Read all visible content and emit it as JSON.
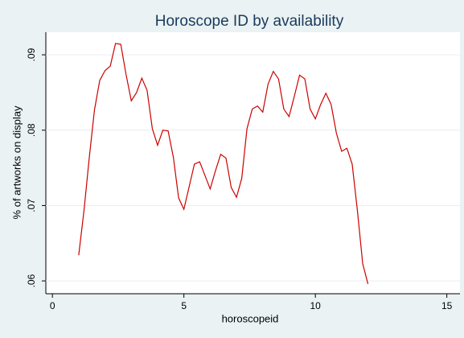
{
  "chart_data": {
    "type": "line",
    "title": "Horoscope ID by availability",
    "x_label": "horoscopeid",
    "y_label": "% of artworks on display",
    "x": [
      1.0,
      1.2,
      1.4,
      1.6,
      1.8,
      2.0,
      2.2,
      2.4,
      2.6,
      2.8,
      3.0,
      3.2,
      3.4,
      3.6,
      3.8,
      4.0,
      4.2,
      4.4,
      4.6,
      4.8,
      5.0,
      5.2,
      5.4,
      5.6,
      5.8,
      6.0,
      6.2,
      6.4,
      6.6,
      6.8,
      7.0,
      7.2,
      7.4,
      7.6,
      7.8,
      8.0,
      8.2,
      8.4,
      8.6,
      8.8,
      9.0,
      9.2,
      9.4,
      9.6,
      9.8,
      10.0,
      10.2,
      10.4,
      10.6,
      10.8,
      11.0,
      11.2,
      11.4,
      11.6,
      11.8,
      12.0
    ],
    "series": [
      {
        "color": "#cc0000",
        "values": [
          0.0634,
          0.0693,
          0.0763,
          0.0827,
          0.0866,
          0.0879,
          0.0885,
          0.0915,
          0.0914,
          0.0874,
          0.0839,
          0.085,
          0.0869,
          0.0853,
          0.0802,
          0.078,
          0.08,
          0.0799,
          0.0764,
          0.071,
          0.0695,
          0.0725,
          0.0755,
          0.0758,
          0.074,
          0.0722,
          0.0746,
          0.0768,
          0.0763,
          0.0724,
          0.0711,
          0.0736,
          0.0802,
          0.0828,
          0.0832,
          0.0824,
          0.0861,
          0.0878,
          0.0868,
          0.0828,
          0.0818,
          0.0845,
          0.0873,
          0.0868,
          0.0828,
          0.0815,
          0.0834,
          0.0849,
          0.0834,
          0.0796,
          0.0772,
          0.0776,
          0.0755,
          0.0693,
          0.0623,
          0.0596
        ]
      }
    ],
    "xlim": [
      -0.25,
      15.5
    ],
    "xticks": [
      0,
      5,
      10,
      15
    ],
    "ylim": [
      0.0583,
      0.093
    ],
    "yticks": [
      {
        "value": 0.06,
        "label": ".06"
      },
      {
        "value": 0.07,
        "label": ".07"
      },
      {
        "value": 0.08,
        "label": ".08"
      },
      {
        "value": 0.09,
        "label": ".09"
      }
    ],
    "grid": true
  }
}
